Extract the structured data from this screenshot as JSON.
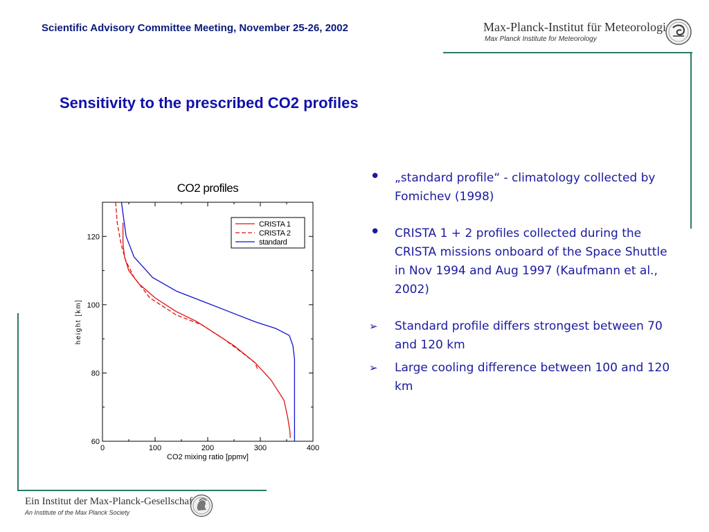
{
  "header": {
    "meeting": "Scientific Advisory Committee Meeting, November 25-26, 2002",
    "institute_name": "Max-Planck-Institut für Meteorologie",
    "institute_subtitle": "Max Planck Institute for Meteorology",
    "logo_icon": "institute-logo-icon"
  },
  "slide": {
    "title": "Sensitivity to the prescribed CO2 profiles"
  },
  "bullets": [
    {
      "marker": "•",
      "text": "„standard profile“ - climatology collected by Fomichev (1998)"
    },
    {
      "marker": "•",
      "text": "CRISTA 1 + 2 profiles collected during the CRISTA missions onboard of the Space Shuttle in Nov 1994 and Aug 1997 (Kaufmann et al., 2002)"
    },
    {
      "marker": "➢",
      "text": "Standard profile differs strongest between 70 and 120 km"
    },
    {
      "marker": "➢",
      "text": "Large cooling difference between 100 and 120 km"
    }
  ],
  "footer": {
    "society_name": "Ein Institut der Max-Planck-Gesellschaft",
    "society_subtitle": "An Institute of the Max Planck Society",
    "logo_icon": "minerva-logo-icon"
  },
  "colors": {
    "header_text": "#0a1a7a",
    "title_text": "#1010aa",
    "bullet_text": "#1a1aa0",
    "rule": "#2a7a6a",
    "crista1": "#e01010",
    "crista2": "#e01010",
    "standard": "#1010d0"
  },
  "chart_data": {
    "type": "line",
    "title": "CO2 profiles",
    "xlabel": "CO2 mixing ratio [ppmv]",
    "ylabel": "height [km]",
    "xlim": [
      0,
      400
    ],
    "ylim": [
      60,
      130
    ],
    "xticks": [
      0,
      100,
      200,
      300,
      400
    ],
    "yticks": [
      60,
      80,
      100,
      120
    ],
    "grid": false,
    "legend_position": "top-right",
    "series": [
      {
        "name": "CRISTA 1",
        "style": "solid",
        "color": "#e01010",
        "points": [
          [
            39,
            124
          ],
          [
            39,
            118
          ],
          [
            42,
            114
          ],
          [
            50,
            110
          ],
          [
            70,
            106
          ],
          [
            100,
            102
          ],
          [
            140,
            98
          ],
          [
            180,
            95
          ],
          [
            210,
            92
          ],
          [
            250,
            88
          ],
          [
            290,
            83
          ],
          [
            320,
            78
          ],
          [
            345,
            72
          ],
          [
            352,
            67
          ],
          [
            356,
            63
          ],
          [
            357,
            61
          ]
        ]
      },
      {
        "name": "CRISTA 2",
        "style": "dashed",
        "color": "#e01010",
        "points": [
          [
            25,
            130
          ],
          [
            28,
            124
          ],
          [
            35,
            118
          ],
          [
            44,
            113
          ],
          [
            60,
            108
          ],
          [
            90,
            102
          ],
          [
            140,
            97
          ],
          [
            190,
            94
          ],
          [
            230,
            90
          ],
          [
            265,
            86
          ],
          [
            290,
            83
          ],
          [
            295,
            81
          ]
        ]
      },
      {
        "name": "standard",
        "style": "solid",
        "color": "#1010d0",
        "points": [
          [
            36,
            130
          ],
          [
            45,
            120
          ],
          [
            60,
            114
          ],
          [
            95,
            108
          ],
          [
            140,
            104
          ],
          [
            190,
            101
          ],
          [
            240,
            98
          ],
          [
            290,
            95
          ],
          [
            330,
            93
          ],
          [
            355,
            91
          ],
          [
            362,
            88
          ],
          [
            365,
            84
          ],
          [
            365,
            60
          ]
        ]
      }
    ]
  }
}
